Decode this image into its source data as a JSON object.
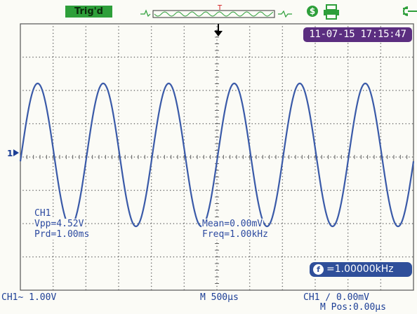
{
  "status": {
    "trigger_label": "Trig'd",
    "trigger_color": "#2e9f3a",
    "clear_icon_glyph": "$",
    "icons": [
      "waveform-position-strip",
      "clear-icon",
      "printer-icon",
      "usb-connection-icon"
    ]
  },
  "timestamp": "11-07-15 17:15:47",
  "channel_marker": "1",
  "measurements": {
    "channel": "CH1",
    "vpp": "Vpp=4.52V",
    "prd": "Prd=1.00ms",
    "mean": "Mean=0.00mV",
    "freq": "Freq=1.00kHz"
  },
  "counter": {
    "icon_glyph": "f",
    "value": "=1.00000kHz"
  },
  "bottom": {
    "ch1_scale": "CH1~ 1.00V",
    "time_base": "M 500µs",
    "trigger_level": "CH1 ∕ 0.00mV",
    "position": "M Pos:0.00µs"
  },
  "colors": {
    "trace": "#3a5aa8",
    "timestamp_badge": "#5b2e80",
    "counter_badge": "#2f4f9a",
    "grid": "#6a6a6a"
  },
  "waveform": {
    "type": "sine",
    "cycles_visible": 5.8,
    "frequency": "1.00kHz",
    "vpp": "4.52V"
  }
}
